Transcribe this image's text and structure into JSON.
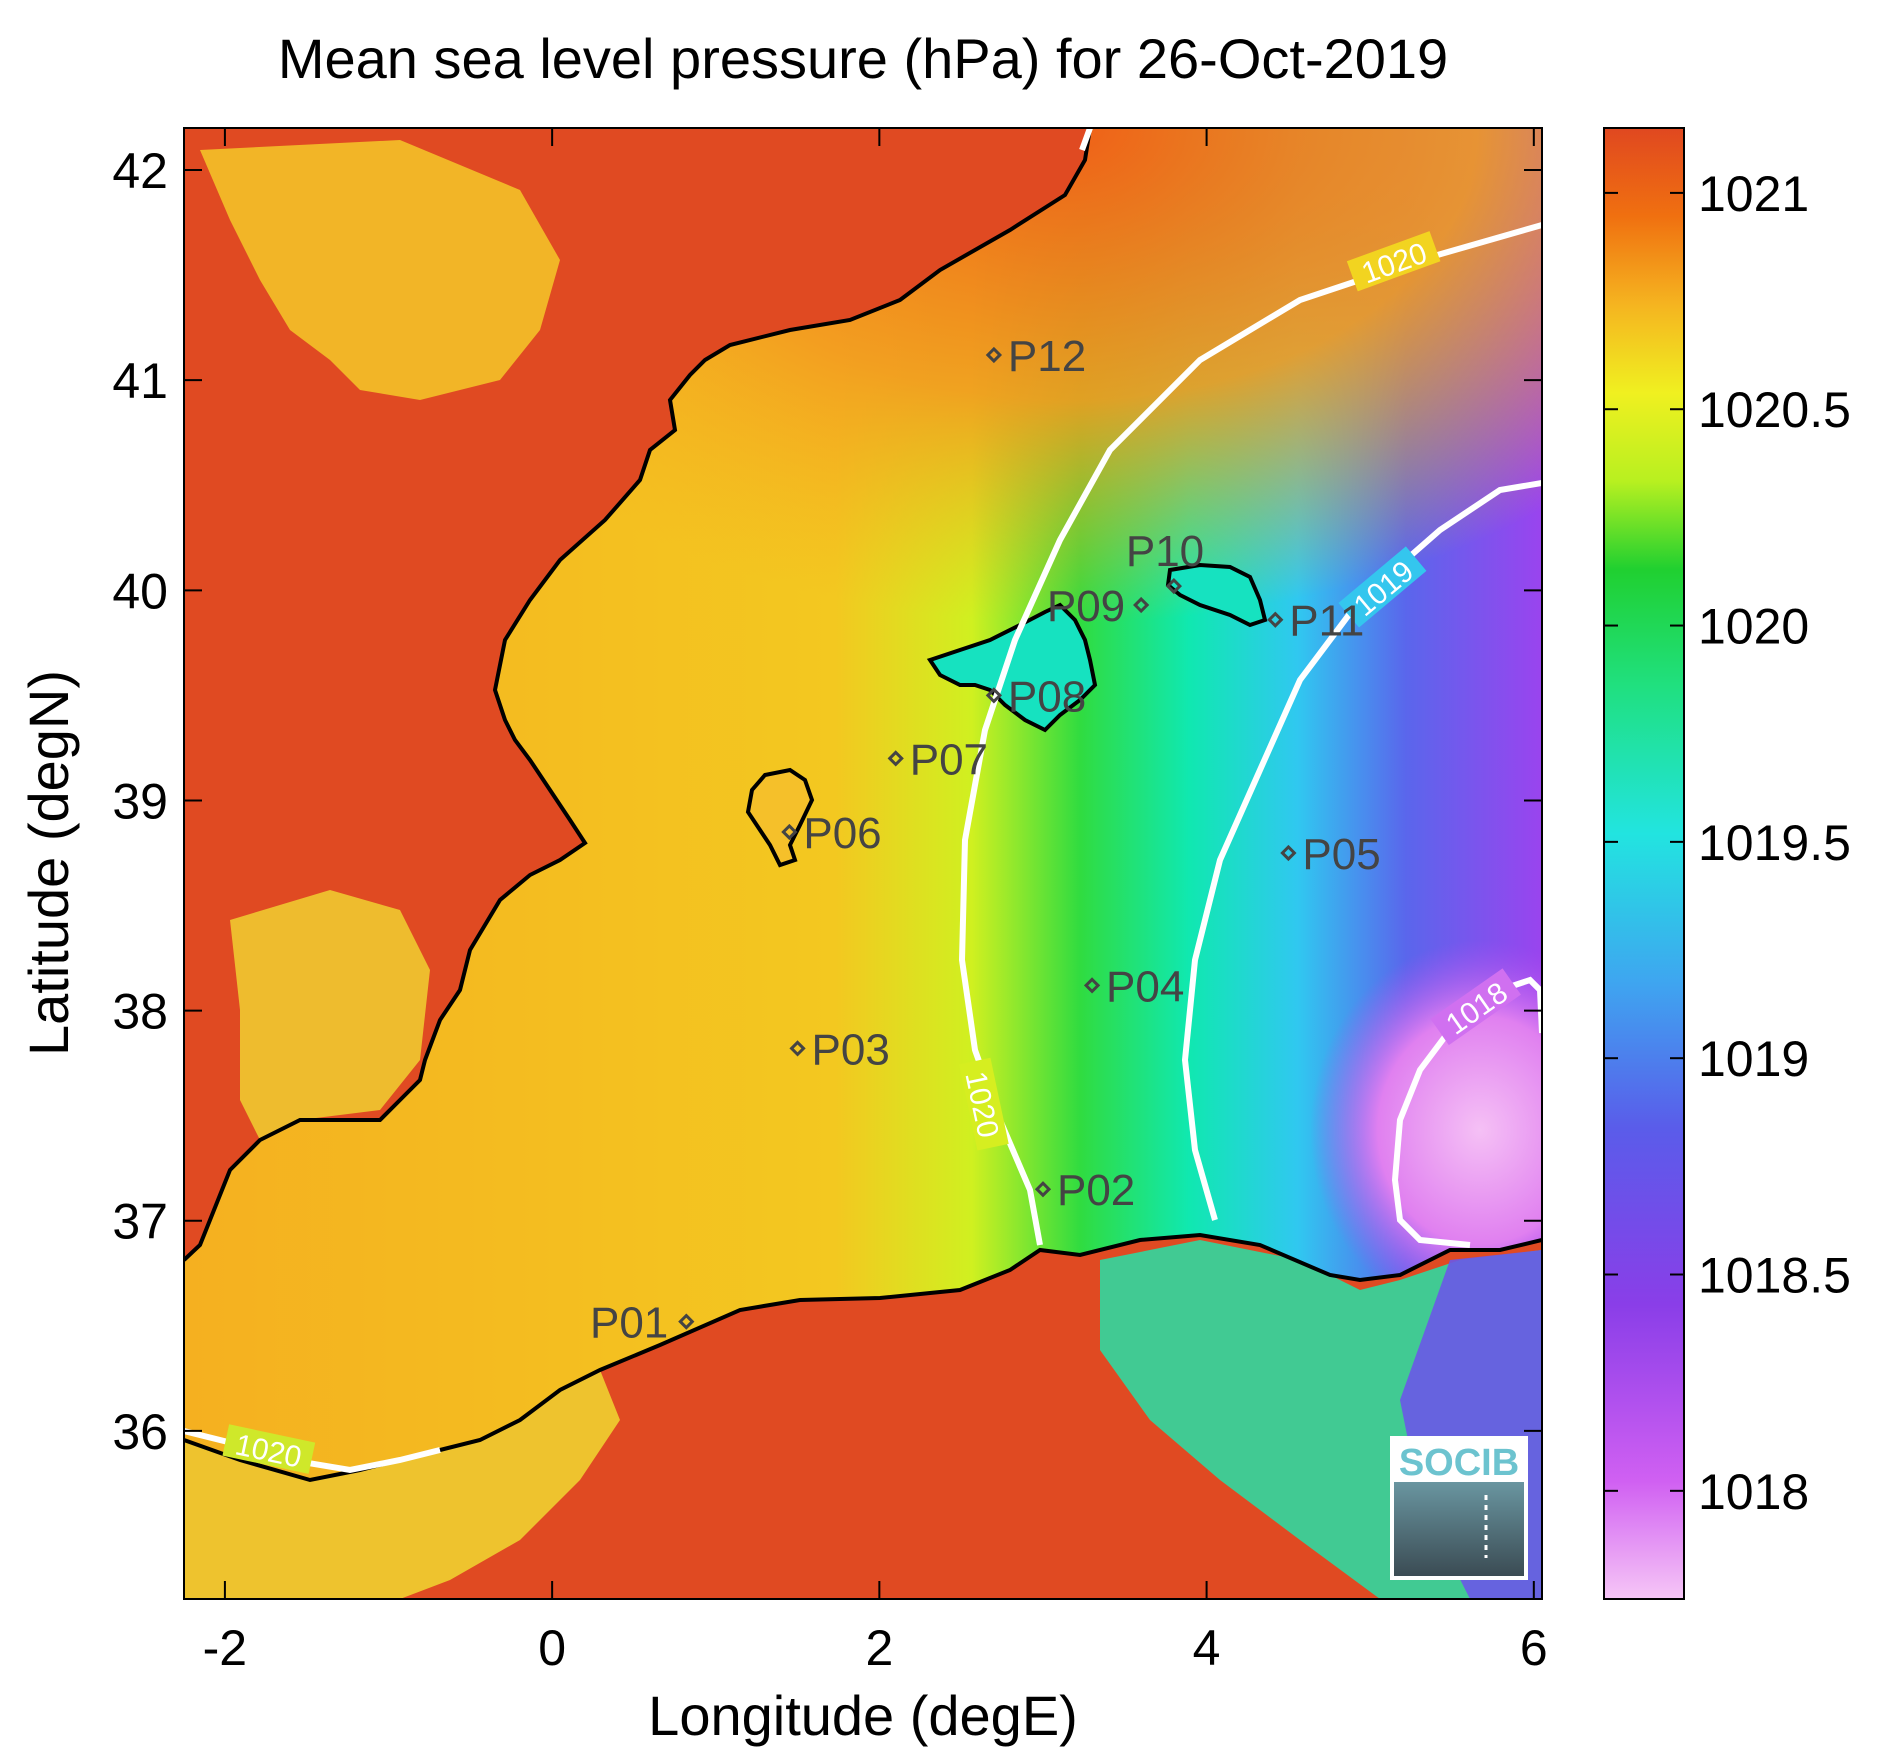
{
  "title": "Mean sea level pressure (hPa) for 26-Oct-2019",
  "xlabel": "Longitude (degE)",
  "ylabel": "Latitude (degN)",
  "x_ticks": [
    -2,
    0,
    2,
    4,
    6
  ],
  "y_ticks": [
    36,
    37,
    38,
    39,
    40,
    41,
    42
  ],
  "xlim": [
    -2.25,
    6.05
  ],
  "ylim": [
    35.2,
    42.2
  ],
  "colorbar": {
    "ticks": [
      1018,
      1018.5,
      1019,
      1019.5,
      1020,
      1020.5,
      1021
    ],
    "range": [
      1017.75,
      1021.15
    ],
    "colors": [
      "#f2b6f2",
      "#c040f0",
      "#7a3ee6",
      "#3f86f0",
      "#22e0e8",
      "#20e086",
      "#20d030",
      "#b4f020",
      "#f0f020",
      "#f5b020",
      "#f07010",
      "#e04820"
    ]
  },
  "contour_labels": [
    "1020",
    "1020",
    "1020",
    "1019",
    "1018"
  ],
  "points": [
    {
      "label": "P01",
      "lon": 0.82,
      "lat": 36.52
    },
    {
      "label": "P02",
      "lon": 3.0,
      "lat": 37.15
    },
    {
      "label": "P03",
      "lon": 1.5,
      "lat": 37.82
    },
    {
      "label": "P04",
      "lon": 3.3,
      "lat": 38.12
    },
    {
      "label": "P05",
      "lon": 4.5,
      "lat": 38.75
    },
    {
      "label": "P06",
      "lon": 1.45,
      "lat": 38.85
    },
    {
      "label": "P07",
      "lon": 2.1,
      "lat": 39.2
    },
    {
      "label": "P08",
      "lon": 2.7,
      "lat": 39.5
    },
    {
      "label": "P09",
      "lon": 3.6,
      "lat": 39.93
    },
    {
      "label": "P10",
      "lon": 3.8,
      "lat": 40.02
    },
    {
      "label": "P11",
      "lon": 4.42,
      "lat": 39.86
    },
    {
      "label": "P12",
      "lon": 2.7,
      "lat": 41.12
    }
  ],
  "logo_text": "SOCIB"
}
